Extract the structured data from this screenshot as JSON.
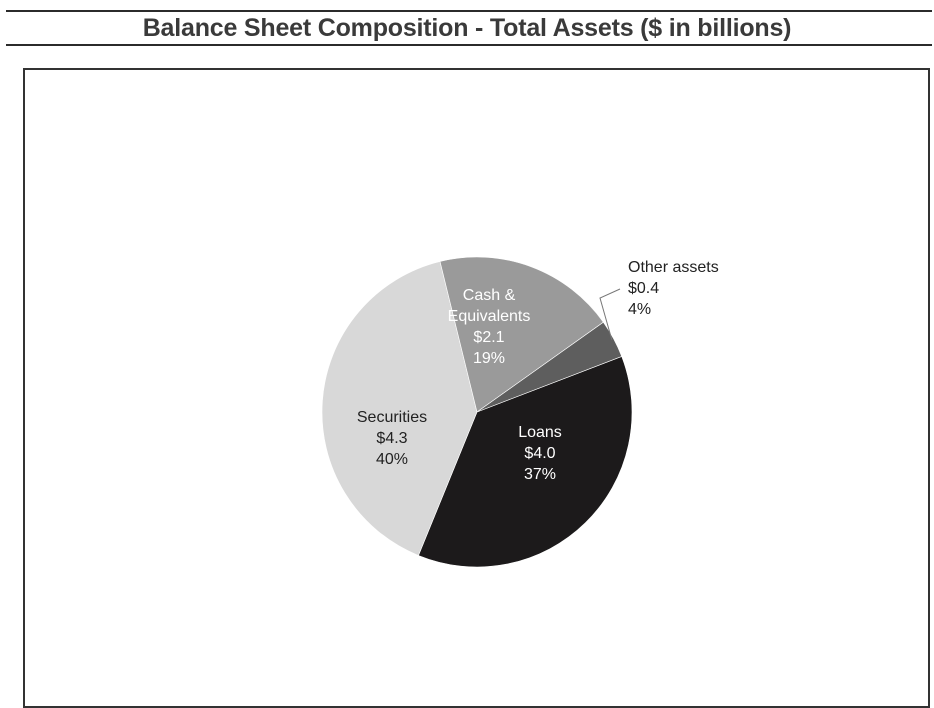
{
  "header": {
    "title": "Balance Sheet Composition - Total Assets ($ in billions)"
  },
  "chart_data": {
    "type": "pie",
    "title": "Balance Sheet Composition - Total Assets ($ in billions)",
    "slices": [
      {
        "label": "Loans",
        "value_text": "$4.0",
        "pct_text": "37%",
        "value": 4.0,
        "percent": 37,
        "color": "#1c1a1b",
        "text_color": "#ffffff"
      },
      {
        "label": "Securities",
        "value_text": "$4.3",
        "pct_text": "40%",
        "value": 4.3,
        "percent": 40,
        "color": "#d8d8d8",
        "text_color": "#222222"
      },
      {
        "label": "Cash &",
        "label2": "Equivalents",
        "value_text": "$2.1",
        "pct_text": "19%",
        "value": 2.1,
        "percent": 19,
        "color": "#9a9a9a",
        "text_color": "#ffffff"
      },
      {
        "label": "Other assets",
        "value_text": "$0.4",
        "pct_text": "4%",
        "value": 0.4,
        "percent": 4,
        "color": "#5e5e5e",
        "text_color": "#222222"
      }
    ]
  }
}
